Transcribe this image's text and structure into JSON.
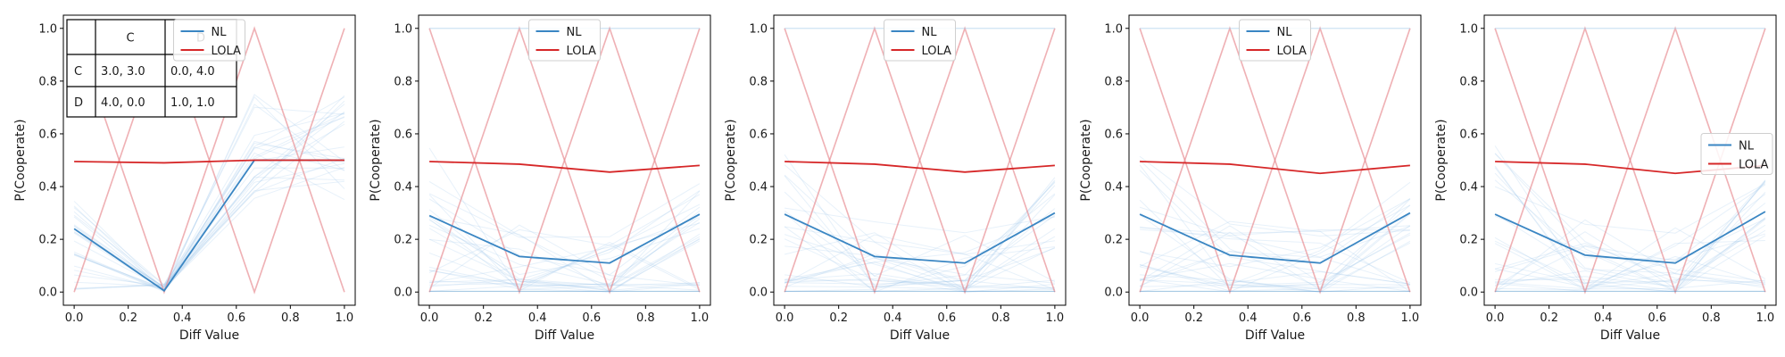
{
  "chart_data": [
    {
      "type": "line",
      "xlabel": "Diff Value",
      "ylabel": "P(Cooperate)",
      "xlim": [
        -0.04,
        1.04
      ],
      "ylim": [
        -0.05,
        1.05
      ],
      "xticks": [
        "0.0",
        "0.2",
        "0.4",
        "0.6",
        "0.8",
        "1.0"
      ],
      "yticks": [
        "0.0",
        "0.2",
        "0.4",
        "0.6",
        "0.8",
        "1.0"
      ],
      "x": [
        0.0,
        0.333,
        0.667,
        1.0
      ],
      "legend": {
        "position": "upper center",
        "entries": [
          "NL",
          "LOLA"
        ]
      },
      "series": [
        {
          "name": "NL",
          "color": "#3a86c3",
          "values": [
            0.24,
            0.005,
            0.5,
            0.5
          ]
        },
        {
          "name": "LOLA",
          "color": "#d62728",
          "values": [
            0.495,
            0.49,
            0.5,
            0.5
          ]
        }
      ],
      "payoff_table": {
        "col_headers": [
          "",
          "C",
          "D"
        ],
        "rows": [
          [
            "C",
            "3.0, 3.0",
            "0.0, 4.0"
          ],
          [
            "D",
            "4.0, 0.0",
            "1.0, 1.0"
          ]
        ]
      }
    },
    {
      "type": "line",
      "xlabel": "Diff Value",
      "ylabel": "P(Cooperate)",
      "xlim": [
        -0.04,
        1.04
      ],
      "ylim": [
        -0.05,
        1.05
      ],
      "xticks": [
        "0.0",
        "0.2",
        "0.4",
        "0.6",
        "0.8",
        "1.0"
      ],
      "yticks": [
        "0.0",
        "0.2",
        "0.4",
        "0.6",
        "0.8",
        "1.0"
      ],
      "x": [
        0.0,
        0.333,
        0.667,
        1.0
      ],
      "legend": {
        "position": "upper center",
        "entries": [
          "NL",
          "LOLA"
        ]
      },
      "series": [
        {
          "name": "NL",
          "color": "#3a86c3",
          "values": [
            0.29,
            0.135,
            0.11,
            0.295
          ]
        },
        {
          "name": "LOLA",
          "color": "#d62728",
          "values": [
            0.495,
            0.485,
            0.455,
            0.48
          ]
        }
      ]
    },
    {
      "type": "line",
      "xlabel": "Diff Value",
      "ylabel": "P(Cooperate)",
      "xlim": [
        -0.04,
        1.04
      ],
      "ylim": [
        -0.05,
        1.05
      ],
      "xticks": [
        "0.0",
        "0.2",
        "0.4",
        "0.6",
        "0.8",
        "1.0"
      ],
      "yticks": [
        "0.0",
        "0.2",
        "0.4",
        "0.6",
        "0.8",
        "1.0"
      ],
      "x": [
        0.0,
        0.333,
        0.667,
        1.0
      ],
      "legend": {
        "position": "upper center",
        "entries": [
          "NL",
          "LOLA"
        ]
      },
      "series": [
        {
          "name": "NL",
          "color": "#3a86c3",
          "values": [
            0.295,
            0.135,
            0.11,
            0.3
          ]
        },
        {
          "name": "LOLA",
          "color": "#d62728",
          "values": [
            0.495,
            0.485,
            0.455,
            0.48
          ]
        }
      ]
    },
    {
      "type": "line",
      "xlabel": "Diff Value",
      "ylabel": "P(Cooperate)",
      "xlim": [
        -0.04,
        1.04
      ],
      "ylim": [
        -0.05,
        1.05
      ],
      "xticks": [
        "0.0",
        "0.2",
        "0.4",
        "0.6",
        "0.8",
        "1.0"
      ],
      "yticks": [
        "0.0",
        "0.2",
        "0.4",
        "0.6",
        "0.8",
        "1.0"
      ],
      "x": [
        0.0,
        0.333,
        0.667,
        1.0
      ],
      "legend": {
        "position": "upper center",
        "entries": [
          "NL",
          "LOLA"
        ]
      },
      "series": [
        {
          "name": "NL",
          "color": "#3a86c3",
          "values": [
            0.295,
            0.14,
            0.11,
            0.3
          ]
        },
        {
          "name": "LOLA",
          "color": "#d62728",
          "values": [
            0.495,
            0.485,
            0.45,
            0.48
          ]
        }
      ]
    },
    {
      "type": "line",
      "xlabel": "Diff Value",
      "ylabel": "P(Cooperate)",
      "xlim": [
        -0.04,
        1.04
      ],
      "ylim": [
        -0.05,
        1.05
      ],
      "xticks": [
        "0.0",
        "0.2",
        "0.4",
        "0.6",
        "0.8",
        "1.0"
      ],
      "yticks": [
        "0.0",
        "0.2",
        "0.4",
        "0.6",
        "0.8",
        "1.0"
      ],
      "x": [
        0.0,
        0.333,
        0.667,
        1.0
      ],
      "legend": {
        "position": "center right",
        "entries": [
          "NL",
          "LOLA"
        ]
      },
      "series": [
        {
          "name": "NL",
          "color": "#3a86c3",
          "values": [
            0.295,
            0.14,
            0.11,
            0.305
          ]
        },
        {
          "name": "LOLA",
          "color": "#d62728",
          "values": [
            0.495,
            0.485,
            0.45,
            0.48
          ]
        }
      ]
    }
  ]
}
